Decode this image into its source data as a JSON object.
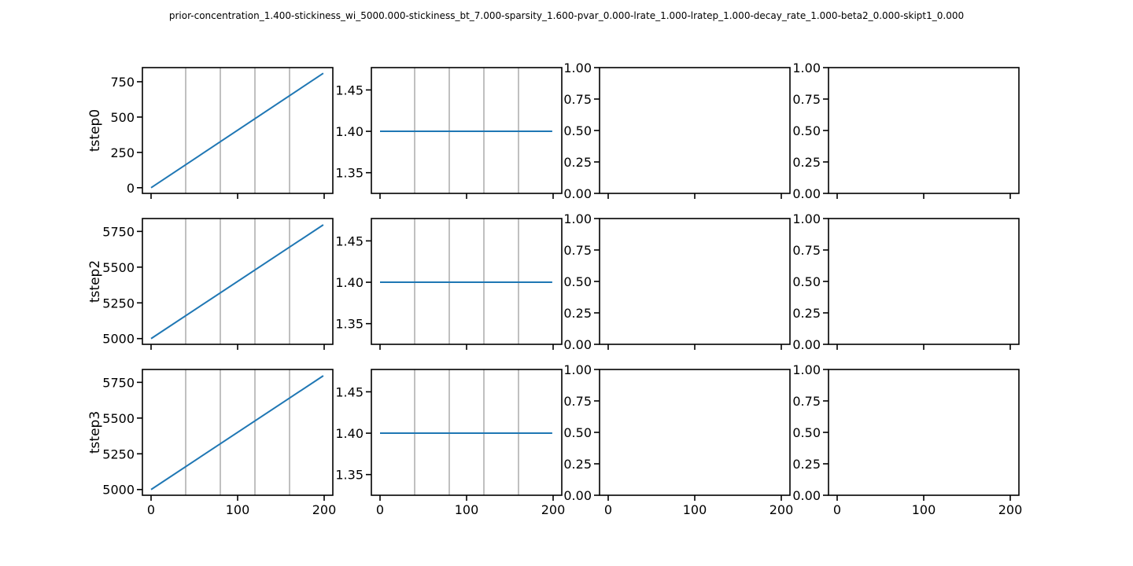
{
  "figure": {
    "title": "prior-concentration_1.400-stickiness_wi_5000.000-stickiness_bt_7.000-sparsity_1.600-pvar_0.000-lrate_1.000-lratep_1.000-decay_rate_1.000-beta2_0.000-skipt1_0.000"
  },
  "colors": {
    "line": "#1f77b4",
    "grid": "#808080",
    "axes": "#000000"
  },
  "chart_data": [
    {
      "type": "line",
      "row": 0,
      "col": 0,
      "ylabel": "tstep0",
      "xlim": [
        -10,
        210
      ],
      "ylim": [
        -40,
        850
      ],
      "xticks": [
        0,
        100,
        200
      ],
      "xtick_labels": [
        "",
        "",
        ""
      ],
      "yticks": [
        0,
        250,
        500,
        750
      ],
      "ytick_labels": [
        "0",
        "250",
        "500",
        "750"
      ],
      "vgrid": [
        40,
        80,
        120,
        160
      ],
      "series": [
        {
          "x": [
            0,
            199
          ],
          "y": [
            0,
            810
          ]
        }
      ]
    },
    {
      "type": "line",
      "row": 0,
      "col": 1,
      "ylabel": "",
      "xlim": [
        -10,
        210
      ],
      "ylim": [
        1.325,
        1.477
      ],
      "xticks": [
        0,
        100,
        200
      ],
      "xtick_labels": [
        "",
        "",
        ""
      ],
      "yticks": [
        1.35,
        1.4,
        1.45
      ],
      "ytick_labels": [
        "1.35",
        "1.40",
        "1.45"
      ],
      "vgrid": [
        40,
        80,
        120,
        160
      ],
      "series": [
        {
          "x": [
            0,
            199
          ],
          "y": [
            1.4,
            1.4
          ]
        }
      ]
    },
    {
      "type": "line",
      "row": 0,
      "col": 2,
      "ylabel": "",
      "xlim": [
        -10,
        210
      ],
      "ylim": [
        0,
        1
      ],
      "xticks": [
        0,
        100,
        200
      ],
      "xtick_labels": [
        "",
        "",
        ""
      ],
      "yticks": [
        0,
        0.25,
        0.5,
        0.75,
        1
      ],
      "ytick_labels": [
        "0.00",
        "0.25",
        "0.50",
        "0.75",
        "1.00"
      ],
      "vgrid": [],
      "series": []
    },
    {
      "type": "line",
      "row": 0,
      "col": 3,
      "ylabel": "",
      "xlim": [
        -10,
        210
      ],
      "ylim": [
        0,
        1
      ],
      "xticks": [
        0,
        100,
        200
      ],
      "xtick_labels": [
        "",
        "",
        ""
      ],
      "yticks": [
        0,
        0.25,
        0.5,
        0.75,
        1
      ],
      "ytick_labels": [
        "0.00",
        "0.25",
        "0.50",
        "0.75",
        "1.00"
      ],
      "vgrid": [],
      "series": []
    },
    {
      "type": "line",
      "row": 1,
      "col": 0,
      "ylabel": "tstep2",
      "xlim": [
        -10,
        210
      ],
      "ylim": [
        4960,
        5840
      ],
      "xticks": [
        0,
        100,
        200
      ],
      "xtick_labels": [
        "",
        "",
        ""
      ],
      "yticks": [
        5000,
        5250,
        5500,
        5750
      ],
      "ytick_labels": [
        "5000",
        "5250",
        "5500",
        "5750"
      ],
      "vgrid": [
        40,
        80,
        120,
        160
      ],
      "series": [
        {
          "x": [
            0,
            199
          ],
          "y": [
            5000,
            5796
          ]
        }
      ]
    },
    {
      "type": "line",
      "row": 1,
      "col": 1,
      "ylabel": "",
      "xlim": [
        -10,
        210
      ],
      "ylim": [
        1.325,
        1.477
      ],
      "xticks": [
        0,
        100,
        200
      ],
      "xtick_labels": [
        "",
        "",
        ""
      ],
      "yticks": [
        1.35,
        1.4,
        1.45
      ],
      "ytick_labels": [
        "1.35",
        "1.40",
        "1.45"
      ],
      "vgrid": [
        40,
        80,
        120,
        160
      ],
      "series": [
        {
          "x": [
            0,
            199
          ],
          "y": [
            1.4,
            1.4
          ]
        }
      ]
    },
    {
      "type": "line",
      "row": 1,
      "col": 2,
      "ylabel": "",
      "xlim": [
        -10,
        210
      ],
      "ylim": [
        0,
        1
      ],
      "xticks": [
        0,
        100,
        200
      ],
      "xtick_labels": [
        "",
        "",
        ""
      ],
      "yticks": [
        0,
        0.25,
        0.5,
        0.75,
        1
      ],
      "ytick_labels": [
        "0.00",
        "0.25",
        "0.50",
        "0.75",
        "1.00"
      ],
      "vgrid": [],
      "series": []
    },
    {
      "type": "line",
      "row": 1,
      "col": 3,
      "ylabel": "",
      "xlim": [
        -10,
        210
      ],
      "ylim": [
        0,
        1
      ],
      "xticks": [
        0,
        100,
        200
      ],
      "xtick_labels": [
        "",
        "",
        ""
      ],
      "yticks": [
        0,
        0.25,
        0.5,
        0.75,
        1
      ],
      "ytick_labels": [
        "0.00",
        "0.25",
        "0.50",
        "0.75",
        "1.00"
      ],
      "vgrid": [],
      "series": []
    },
    {
      "type": "line",
      "row": 2,
      "col": 0,
      "ylabel": "tstep3",
      "xlim": [
        -10,
        210
      ],
      "ylim": [
        4960,
        5840
      ],
      "xticks": [
        0,
        100,
        200
      ],
      "xtick_labels": [
        "0",
        "100",
        "200"
      ],
      "yticks": [
        5000,
        5250,
        5500,
        5750
      ],
      "ytick_labels": [
        "5000",
        "5250",
        "5500",
        "5750"
      ],
      "vgrid": [
        40,
        80,
        120,
        160
      ],
      "series": [
        {
          "x": [
            0,
            199
          ],
          "y": [
            5000,
            5796
          ]
        }
      ]
    },
    {
      "type": "line",
      "row": 2,
      "col": 1,
      "ylabel": "",
      "xlim": [
        -10,
        210
      ],
      "ylim": [
        1.325,
        1.477
      ],
      "xticks": [
        0,
        100,
        200
      ],
      "xtick_labels": [
        "0",
        "100",
        "200"
      ],
      "yticks": [
        1.35,
        1.4,
        1.45
      ],
      "ytick_labels": [
        "1.35",
        "1.40",
        "1.45"
      ],
      "vgrid": [
        40,
        80,
        120,
        160
      ],
      "series": [
        {
          "x": [
            0,
            199
          ],
          "y": [
            1.4,
            1.4
          ]
        }
      ]
    },
    {
      "type": "line",
      "row": 2,
      "col": 2,
      "ylabel": "",
      "xlim": [
        -10,
        210
      ],
      "ylim": [
        0,
        1
      ],
      "xticks": [
        0,
        100,
        200
      ],
      "xtick_labels": [
        "0",
        "100",
        "200"
      ],
      "yticks": [
        0,
        0.25,
        0.5,
        0.75,
        1
      ],
      "ytick_labels": [
        "0.00",
        "0.25",
        "0.50",
        "0.75",
        "1.00"
      ],
      "vgrid": [],
      "series": []
    },
    {
      "type": "line",
      "row": 2,
      "col": 3,
      "ylabel": "",
      "xlim": [
        -10,
        210
      ],
      "ylim": [
        0,
        1
      ],
      "xticks": [
        0,
        100,
        200
      ],
      "xtick_labels": [
        "0",
        "100",
        "200"
      ],
      "yticks": [
        0,
        0.25,
        0.5,
        0.75,
        1
      ],
      "ytick_labels": [
        "0.00",
        "0.25",
        "0.50",
        "0.75",
        "1.00"
      ],
      "vgrid": [],
      "series": []
    }
  ]
}
